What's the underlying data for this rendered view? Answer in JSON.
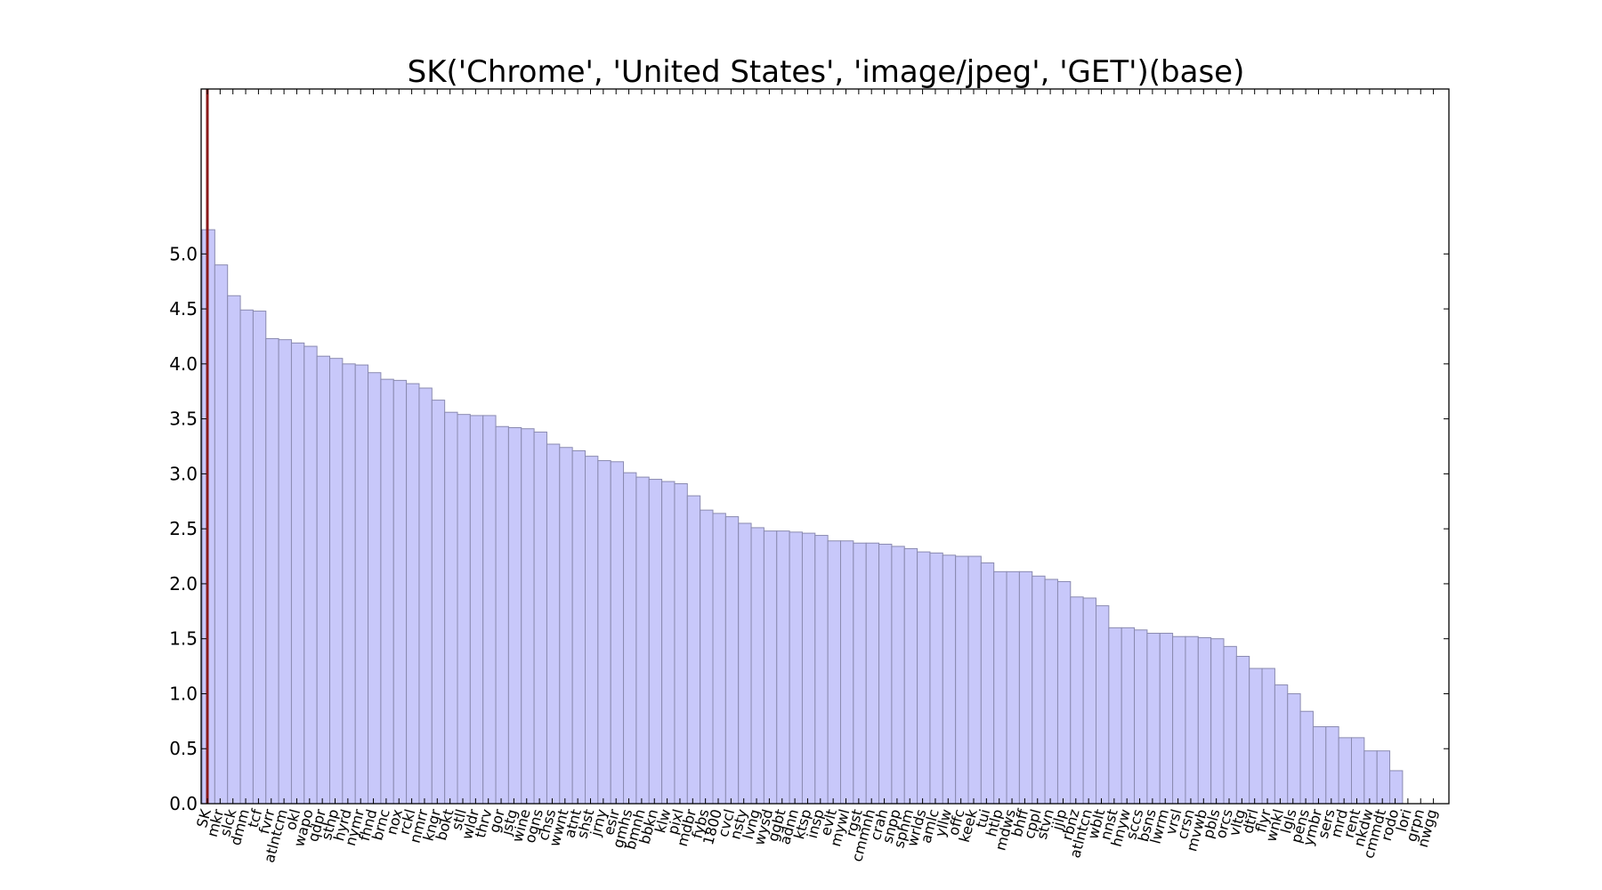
{
  "chart_data": {
    "type": "bar",
    "title": "SK('Chrome', 'United States', 'image/jpeg', 'GET')(base)",
    "xlabel": "",
    "ylabel": "",
    "ylim": [
      0,
      6.5
    ],
    "yticks": [
      0.0,
      0.5,
      1.0,
      1.5,
      2.0,
      2.5,
      3.0,
      3.5,
      4.0,
      4.5,
      5.0
    ],
    "ytick_labels": [
      "0.0",
      "0.5",
      "1.0",
      "1.5",
      "2.0",
      "2.5",
      "3.0",
      "3.5",
      "4.0",
      "4.5",
      "5.0"
    ],
    "grid": false,
    "bar_color": "#c8c8fa",
    "bar_edge_color": "#8a8ab0",
    "marker_line": {
      "category": "SK",
      "color": "#8b1a1a"
    },
    "categories": [
      "SK",
      "mkr",
      "slck",
      "dmm",
      "tcf",
      "fvrr",
      "atlntcm",
      "okl",
      "wapo",
      "qdpr",
      "sthp",
      "hyrd",
      "nymr",
      "fhnd",
      "brnc",
      "nox",
      "rckl",
      "nmrr",
      "kngr",
      "bokt",
      "stll",
      "wldr",
      "thrv",
      "gor",
      "jstg",
      "wine",
      "ogns",
      "chss",
      "wwnt",
      "atnt",
      "shst",
      "jrny",
      "esir",
      "gmhs",
      "bmnh",
      "bbkn",
      "klw",
      "pixl",
      "mdbr",
      "fybs",
      "1800",
      "cvcl",
      "nsty",
      "lvng",
      "wysd",
      "ggbt",
      "adnn",
      "ktsp",
      "insp",
      "evlt",
      "mywl",
      "rgst",
      "cmmnh",
      "crah",
      "snpp",
      "sphm",
      "wrlds",
      "amlc",
      "yllw",
      "offc",
      "keek",
      "tui",
      "htlp",
      "mdws",
      "bhff",
      "cppl",
      "stvn",
      "jjlp",
      "rbnz",
      "atlntcn",
      "wblt",
      "nnst",
      "hnyw",
      "sccs",
      "bsns",
      "lwrm",
      "vrsl",
      "crsn",
      "mvwb",
      "pbls",
      "orcs",
      "vltg",
      "dtrl",
      "flyr",
      "wnkl",
      "lgls",
      "pens",
      "ymbr",
      "sers",
      "mrd",
      "rent",
      "nkdw",
      "cmmdt",
      "rodo",
      "lori",
      "grpn",
      "nwgg"
    ],
    "values": [
      5.22,
      4.9,
      4.62,
      4.49,
      4.48,
      4.23,
      4.22,
      4.19,
      4.16,
      4.07,
      4.05,
      4.0,
      3.99,
      3.92,
      3.86,
      3.85,
      3.82,
      3.78,
      3.67,
      3.56,
      3.54,
      3.53,
      3.53,
      3.43,
      3.42,
      3.41,
      3.38,
      3.27,
      3.24,
      3.21,
      3.16,
      3.12,
      3.11,
      3.01,
      2.97,
      2.95,
      2.93,
      2.91,
      2.8,
      2.67,
      2.64,
      2.61,
      2.55,
      2.51,
      2.48,
      2.48,
      2.47,
      2.46,
      2.44,
      2.39,
      2.39,
      2.37,
      2.37,
      2.36,
      2.34,
      2.32,
      2.29,
      2.28,
      2.26,
      2.25,
      2.25,
      2.19,
      2.11,
      2.11,
      2.11,
      2.07,
      2.04,
      2.02,
      1.88,
      1.87,
      1.8,
      1.6,
      1.6,
      1.58,
      1.55,
      1.55,
      1.52,
      1.52,
      1.51,
      1.5,
      1.43,
      1.34,
      1.23,
      1.23,
      1.08,
      1.0,
      0.84,
      0.7,
      0.7,
      0.6,
      0.6,
      0.48,
      0.48,
      0.3,
      0.0,
      0.0,
      0.0
    ]
  }
}
